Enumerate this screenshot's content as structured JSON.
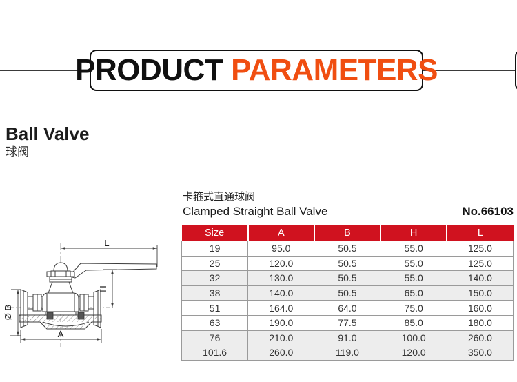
{
  "banner": {
    "word_black": "PRODUCT",
    "word_accent": "PARAMETERS",
    "accent_color": "#F04E11"
  },
  "product": {
    "name_en": "Ball Valve",
    "name_cn": "球阀"
  },
  "spec": {
    "subtitle_cn": "卡箍式直通球阀",
    "subtitle_en": "Clamped Straight Ball Valve",
    "model_no": "No.66103"
  },
  "table": {
    "header_color": "#D0121F",
    "columns": [
      "Size",
      "A",
      "B",
      "H",
      "L"
    ],
    "rows": [
      [
        "19",
        "95.0",
        "50.5",
        "55.0",
        "125.0"
      ],
      [
        "25",
        "120.0",
        "50.5",
        "55.0",
        "125.0"
      ],
      [
        "32",
        "130.0",
        "50.5",
        "55.0",
        "140.0"
      ],
      [
        "38",
        "140.0",
        "50.5",
        "65.0",
        "150.0"
      ],
      [
        "51",
        "164.0",
        "64.0",
        "75.0",
        "160.0"
      ],
      [
        "63",
        "190.0",
        "77.5",
        "85.0",
        "180.0"
      ],
      [
        "76",
        "210.0",
        "91.0",
        "100.0",
        "260.0"
      ],
      [
        "101.6",
        "260.0",
        "119.0",
        "120.0",
        "350.0"
      ]
    ]
  },
  "diagram": {
    "dim_top": "L",
    "dim_right": "H",
    "dim_left": "Ø B",
    "dim_bottom": "A"
  }
}
